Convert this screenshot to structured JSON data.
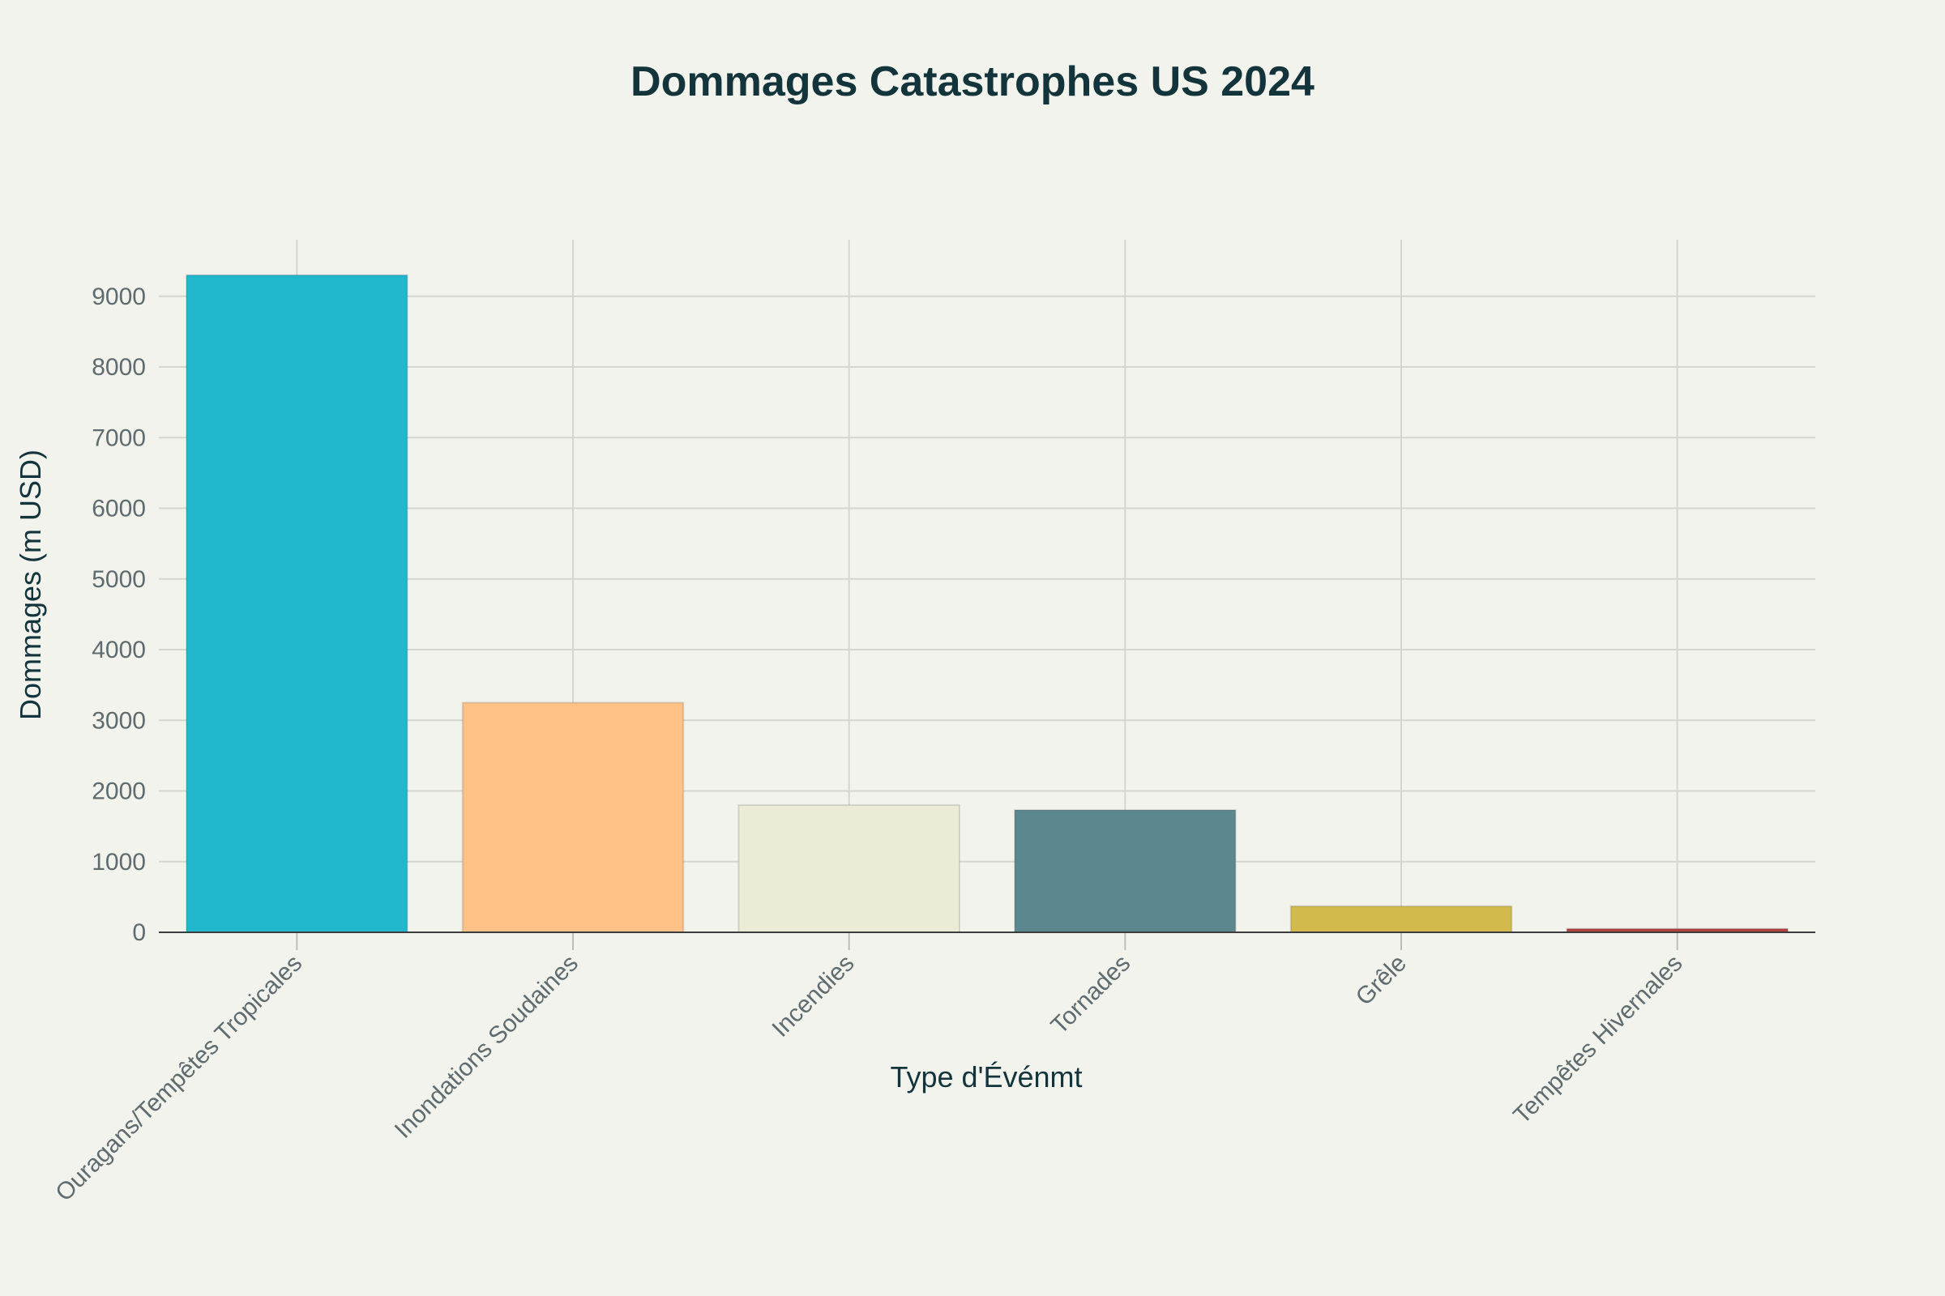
{
  "chart_data": {
    "type": "bar",
    "title": "Dommages Catastrophes US 2024",
    "xlabel": "Type d'Événmt",
    "ylabel": "Dommages (m USD)",
    "categories": [
      "Ouragans/Tempêtes Tropicales",
      "Inondations Soudaines",
      "Incendies",
      "Tornades",
      "Grêle",
      "Tempêtes Hivernales"
    ],
    "values": [
      9300,
      3250,
      1800,
      1730,
      370,
      50
    ],
    "colors": [
      "#21B7CC",
      "#FFC185",
      "#ECEBD5",
      "#5D878F",
      "#D2BA4C",
      "#B4413C"
    ],
    "ylim": [
      0,
      9800
    ],
    "yticks": [
      0,
      1000,
      2000,
      3000,
      4000,
      5000,
      6000,
      7000,
      8000,
      9000
    ],
    "grid": true,
    "legend": "none"
  }
}
